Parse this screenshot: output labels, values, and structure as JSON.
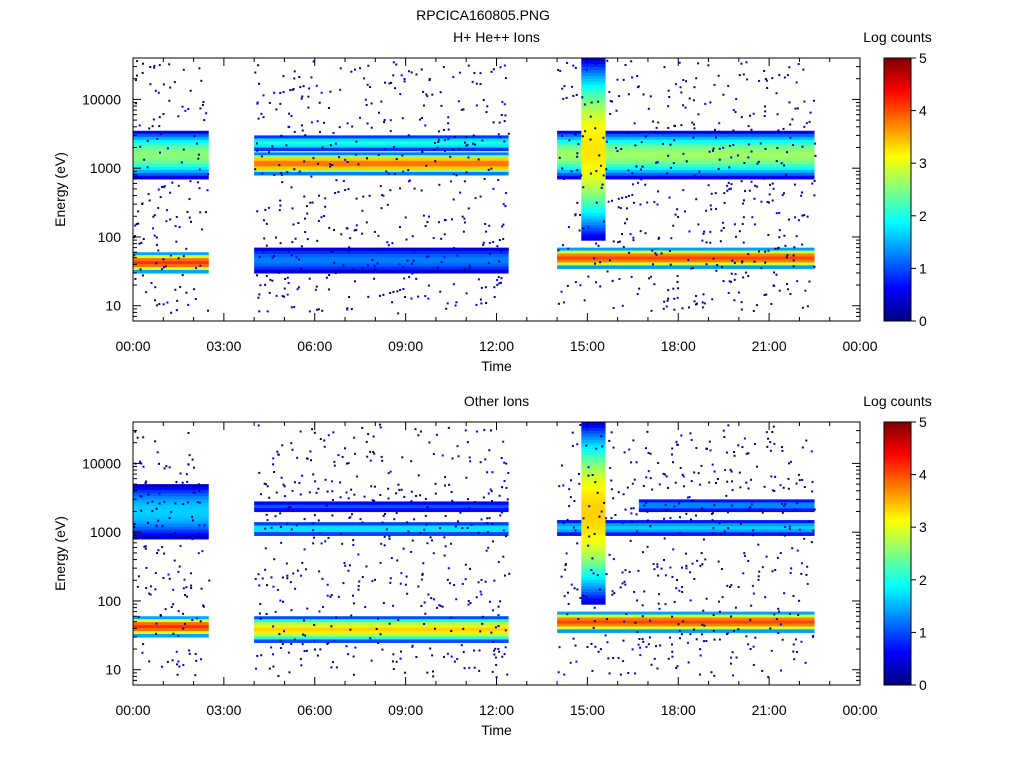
{
  "figure": {
    "title": "RPCICA160805.PNG"
  },
  "colors": {
    "colormap": [
      "#000080",
      "#0000ff",
      "#0080ff",
      "#00ffff",
      "#80ff80",
      "#ffff00",
      "#ff8000",
      "#ff0000",
      "#800000"
    ],
    "background": "#ffffff",
    "axis": "#000000"
  },
  "chart_data": [
    {
      "type": "heatmap",
      "title": "H+ He++ Ions",
      "xlabel": "Time",
      "ylabel": "Energy (eV)",
      "colorbar_label": "Log counts",
      "x_tick_labels": [
        "00:00",
        "03:00",
        "06:00",
        "09:00",
        "12:00",
        "15:00",
        "18:00",
        "21:00",
        "00:00"
      ],
      "xlim_hours": [
        0,
        24
      ],
      "y_tick_labels": [
        "10",
        "100",
        "1000",
        "10000"
      ],
      "y_scale": "log",
      "ylim_eV": [
        6,
        40000
      ],
      "colorbar_ticks": [
        "0",
        "1",
        "2",
        "3",
        "4",
        "5"
      ],
      "clim": [
        0,
        5
      ],
      "data_intervals_hours": [
        [
          0.0,
          2.5
        ],
        [
          4.0,
          12.4
        ],
        [
          14.0,
          22.5
        ]
      ],
      "bands": [
        {
          "t_hours": [
            0.0,
            2.5
          ],
          "energy_eV": [
            30,
            60
          ],
          "log_counts": 4.1
        },
        {
          "t_hours": [
            0.0,
            2.5
          ],
          "energy_eV": [
            700,
            3500
          ],
          "log_counts": 2.5
        },
        {
          "t_hours": [
            4.0,
            12.4
          ],
          "energy_eV": [
            800,
            1700
          ],
          "log_counts": 3.8
        },
        {
          "t_hours": [
            4.0,
            12.4
          ],
          "energy_eV": [
            1800,
            3000
          ],
          "log_counts": 2.0
        },
        {
          "t_hours": [
            4.0,
            12.4
          ],
          "energy_eV": [
            30,
            70
          ],
          "log_counts": 1.2
        },
        {
          "t_hours": [
            14.0,
            22.5
          ],
          "energy_eV": [
            35,
            70
          ],
          "log_counts": 4.0
        },
        {
          "t_hours": [
            14.0,
            22.5
          ],
          "energy_eV": [
            700,
            3500
          ],
          "log_counts": 2.6
        },
        {
          "t_hours": [
            14.8,
            15.6
          ],
          "energy_eV": [
            90,
            40000
          ],
          "log_counts": 3.2
        }
      ]
    },
    {
      "type": "heatmap",
      "title": "Other Ions",
      "xlabel": "Time",
      "ylabel": "Energy (eV)",
      "colorbar_label": "Log counts",
      "x_tick_labels": [
        "00:00",
        "03:00",
        "06:00",
        "09:00",
        "12:00",
        "15:00",
        "18:00",
        "21:00",
        "00:00"
      ],
      "xlim_hours": [
        0,
        24
      ],
      "y_tick_labels": [
        "10",
        "100",
        "1000",
        "10000"
      ],
      "y_scale": "log",
      "ylim_eV": [
        6,
        40000
      ],
      "colorbar_ticks": [
        "0",
        "1",
        "2",
        "3",
        "4",
        "5"
      ],
      "clim": [
        0,
        5
      ],
      "data_intervals_hours": [
        [
          0.0,
          2.5
        ],
        [
          4.0,
          12.4
        ],
        [
          14.0,
          22.5
        ]
      ],
      "bands": [
        {
          "t_hours": [
            0.0,
            2.5
          ],
          "energy_eV": [
            30,
            60
          ],
          "log_counts": 4.1
        },
        {
          "t_hours": [
            0.0,
            2.5
          ],
          "energy_eV": [
            800,
            5000
          ],
          "log_counts": 1.6
        },
        {
          "t_hours": [
            4.0,
            12.4
          ],
          "energy_eV": [
            25,
            60
          ],
          "log_counts": 3.3
        },
        {
          "t_hours": [
            4.0,
            12.4
          ],
          "energy_eV": [
            900,
            1400
          ],
          "log_counts": 1.8
        },
        {
          "t_hours": [
            4.0,
            12.4
          ],
          "energy_eV": [
            2000,
            2800
          ],
          "log_counts": 1.0
        },
        {
          "t_hours": [
            14.0,
            22.5
          ],
          "energy_eV": [
            35,
            70
          ],
          "log_counts": 4.0
        },
        {
          "t_hours": [
            14.0,
            22.5
          ],
          "energy_eV": [
            900,
            1500
          ],
          "log_counts": 1.6
        },
        {
          "t_hours": [
            16.7,
            22.5
          ],
          "energy_eV": [
            2000,
            3000
          ],
          "log_counts": 1.3
        },
        {
          "t_hours": [
            14.8,
            15.6
          ],
          "energy_eV": [
            90,
            40000
          ],
          "log_counts": 3.3
        }
      ]
    }
  ]
}
